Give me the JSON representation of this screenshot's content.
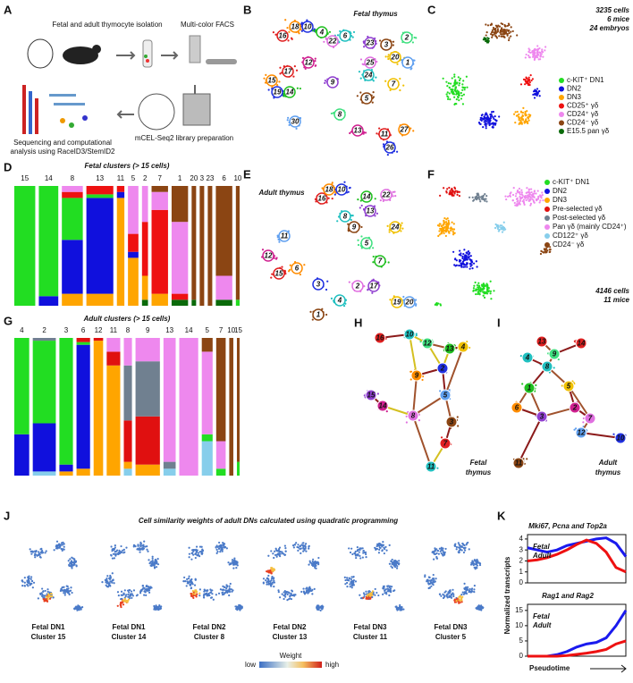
{
  "panels": {
    "A": {
      "label": "A",
      "texts": [
        "Fetal and adult thymocyte isolation",
        "Multi-color FACS",
        "mCEL-Seq2 library preparation",
        "Sequencing and computational",
        "analysis using RaceID3/StemID2"
      ]
    },
    "B": {
      "label": "B",
      "title": "Fetal thymus",
      "clusters": [
        "16",
        "18",
        "10",
        "4",
        "22",
        "6",
        "23",
        "3",
        "20",
        "1",
        "2",
        "12",
        "17",
        "15",
        "19",
        "14",
        "25",
        "24",
        "9",
        "5",
        "7",
        "30",
        "8",
        "13",
        "11",
        "27",
        "26"
      ]
    },
    "C": {
      "label": "C",
      "notes": [
        "3235 cells",
        "6 mice",
        "24 embryos"
      ]
    },
    "D": {
      "label": "D"
    },
    "E": {
      "label": "E",
      "title": "Adult thymus",
      "clusters": [
        "16",
        "18",
        "10",
        "14",
        "22",
        "8",
        "13",
        "9",
        "24",
        "11",
        "5",
        "12",
        "15",
        "6",
        "3",
        "7",
        "2",
        "4",
        "17",
        "1",
        "19",
        "20"
      ]
    },
    "F": {
      "label": "F",
      "notes": [
        "4146 cells",
        "11 mice"
      ]
    },
    "G": {
      "label": "G"
    },
    "H": {
      "label": "H",
      "title": [
        "Fetal",
        "thymus"
      ],
      "nodes": [
        "16",
        "10",
        "12",
        "13",
        "4",
        "9",
        "15",
        "14",
        "8",
        "5",
        "2",
        "3",
        "7",
        "11"
      ]
    },
    "I": {
      "label": "I",
      "title": [
        "Adult",
        "thymus"
      ],
      "nodes": [
        "14",
        "8",
        "9",
        "1",
        "5",
        "6",
        "3",
        "2",
        "7",
        "12",
        "10",
        "11",
        "13",
        "4"
      ]
    },
    "J": {
      "label": "J",
      "title": "Cell similarity weights of adult DNs calculated using quadratic programming",
      "maps": [
        [
          "Fetal DN1",
          "Cluster 15"
        ],
        [
          "Fetal DN1",
          "Cluster 14"
        ],
        [
          "Fetal DN2",
          "Cluster 8"
        ],
        [
          "Fetal DN2",
          "Cluster 13"
        ],
        [
          "Fetal DN3",
          "Cluster 11"
        ],
        [
          "Fetal DN3",
          "Cluster 5"
        ]
      ],
      "colorbar": {
        "title": "Weight",
        "low": "low",
        "high": "high"
      }
    },
    "K": {
      "label": "K",
      "ylabel": "Normalized transcripts",
      "xlabel": "Pseudotime"
    }
  },
  "chart_data": [
    {
      "type": "stacked_bar",
      "title": "Fetal clusters (> 15 cells)",
      "categories": [
        "15",
        "14",
        "8",
        "13",
        "11",
        "5",
        "2",
        "7",
        "1",
        "20",
        "3",
        "23",
        "6",
        "10"
      ],
      "cluster_sizes": [
        280,
        260,
        280,
        360,
        100,
        140,
        80,
        220,
        220,
        60,
        60,
        60,
        220,
        50
      ],
      "ylim": [
        0,
        100
      ],
      "series": [
        {
          "name": "c-KIT⁺ DN1",
          "color": "#22dd22",
          "values": [
            100,
            92,
            35,
            3,
            0,
            0,
            0,
            0,
            0,
            0,
            0,
            0,
            0,
            5
          ]
        },
        {
          "name": "DN2",
          "color": "#1010dd",
          "values": [
            0,
            8,
            45,
            80,
            5,
            5,
            0,
            0,
            0,
            0,
            0,
            0,
            0,
            0
          ]
        },
        {
          "name": "DN3",
          "color": "#ffa500",
          "values": [
            0,
            0,
            10,
            10,
            90,
            40,
            20,
            10,
            0,
            0,
            0,
            0,
            0,
            0
          ]
        },
        {
          "name": "CD25⁺ γδ",
          "color": "#ee1111",
          "values": [
            0,
            0,
            5,
            7,
            5,
            15,
            45,
            70,
            5,
            0,
            0,
            0,
            0,
            0
          ]
        },
        {
          "name": "CD24⁺ γδ",
          "color": "#ee88ee",
          "values": [
            0,
            0,
            5,
            0,
            0,
            40,
            30,
            15,
            60,
            0,
            0,
            0,
            20,
            0
          ]
        },
        {
          "name": "CD24⁻ γδ",
          "color": "#8b4513",
          "values": [
            0,
            0,
            0,
            0,
            0,
            0,
            0,
            5,
            30,
            95,
            100,
            100,
            75,
            95
          ]
        },
        {
          "name": "E15.5 pan γδ",
          "color": "#0a6a0a",
          "values": [
            0,
            0,
            0,
            0,
            0,
            0,
            5,
            0,
            5,
            5,
            0,
            0,
            5,
            0
          ]
        }
      ]
    },
    {
      "type": "stacked_bar",
      "title": "Adult clusters (> 15 cells)",
      "categories": [
        "4",
        "2",
        "3",
        "6",
        "12",
        "11",
        "8",
        "9",
        "13",
        "14",
        "5",
        "7",
        "10",
        "15"
      ],
      "cluster_sizes": [
        220,
        340,
        200,
        200,
        140,
        200,
        120,
        360,
        180,
        280,
        160,
        140,
        60,
        40
      ],
      "ylim": [
        0,
        100
      ],
      "series": [
        {
          "name": "c-KIT⁺ DN1",
          "color": "#22dd22",
          "values": [
            70,
            60,
            92,
            2,
            0,
            0,
            0,
            0,
            0,
            0,
            5,
            5,
            0,
            10
          ]
        },
        {
          "name": "DN2",
          "color": "#1010dd",
          "values": [
            30,
            35,
            5,
            90,
            0,
            0,
            0,
            0,
            0,
            0,
            0,
            0,
            0,
            0
          ]
        },
        {
          "name": "DN3",
          "color": "#ffa500",
          "values": [
            0,
            0,
            3,
            5,
            98,
            80,
            5,
            8,
            0,
            0,
            0,
            0,
            0,
            0
          ]
        },
        {
          "name": "Pre-selected γδ",
          "color": "#e01010",
          "values": [
            0,
            0,
            0,
            3,
            2,
            10,
            30,
            35,
            0,
            0,
            0,
            0,
            0,
            0
          ]
        },
        {
          "name": "Post-selected γδ",
          "color": "#708090",
          "values": [
            0,
            2,
            0,
            0,
            0,
            0,
            40,
            40,
            5,
            0,
            0,
            0,
            0,
            0
          ]
        },
        {
          "name": "Pan γδ (mainly CD24⁺)",
          "color": "#ee88ee",
          "values": [
            0,
            0,
            0,
            0,
            0,
            10,
            20,
            17,
            90,
            100,
            60,
            20,
            0,
            0
          ]
        },
        {
          "name": "CD122⁺ γδ",
          "color": "#87ceeb",
          "values": [
            0,
            3,
            0,
            0,
            0,
            0,
            5,
            0,
            5,
            0,
            25,
            0,
            0,
            0
          ]
        },
        {
          "name": "CD24⁻ γδ",
          "color": "#8b4513",
          "values": [
            0,
            0,
            0,
            0,
            0,
            0,
            0,
            0,
            0,
            0,
            10,
            75,
            100,
            90
          ]
        }
      ]
    },
    {
      "type": "line",
      "title": "Mki67, Pcna and Top2a",
      "x": [
        0,
        1,
        2,
        3,
        4,
        5,
        6,
        7,
        8,
        9,
        10
      ],
      "xlim": [
        0,
        10
      ],
      "ylim": [
        0,
        4.4
      ],
      "yticks": [
        0,
        1,
        2,
        3,
        4
      ],
      "series": [
        {
          "name": "Fetal",
          "color": "#1a1aee",
          "values": [
            3.2,
            3.0,
            2.8,
            3.0,
            3.4,
            3.6,
            3.8,
            4.0,
            4.1,
            3.6,
            2.4
          ]
        },
        {
          "name": "Adult",
          "color": "#ee1111",
          "values": [
            2.0,
            2.1,
            2.3,
            2.6,
            3.0,
            3.5,
            3.9,
            3.6,
            2.8,
            1.4,
            1.0
          ]
        }
      ]
    },
    {
      "type": "line",
      "title": "Rag1 and Rag2",
      "x": [
        0,
        1,
        2,
        3,
        4,
        5,
        6,
        7,
        8,
        9,
        10
      ],
      "xlim": [
        0,
        10
      ],
      "ylim": [
        0,
        17
      ],
      "yticks": [
        0,
        5,
        10,
        15
      ],
      "series": [
        {
          "name": "Fetal",
          "color": "#1a1aee",
          "values": [
            0,
            0,
            0,
            0.5,
            1.5,
            3,
            4,
            4.5,
            6,
            10,
            15
          ]
        },
        {
          "name": "Adult",
          "color": "#ee1111",
          "values": [
            0,
            0,
            0,
            0,
            0.2,
            0.6,
            1,
            1.5,
            2.2,
            4,
            5
          ]
        }
      ]
    }
  ]
}
